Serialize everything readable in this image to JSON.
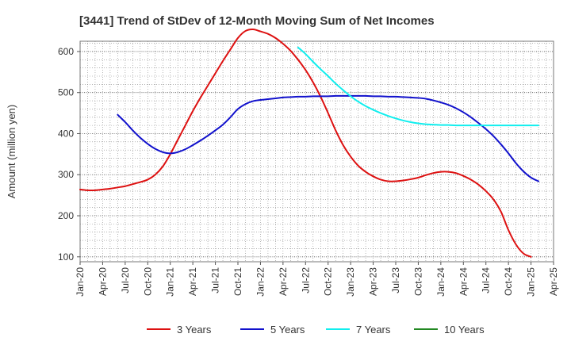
{
  "chart_data": {
    "type": "line",
    "title": "[3441]  Trend of StDev of 12-Month Moving Sum of Net Incomes",
    "ylabel": "Amount (million yen)",
    "xlabel": "",
    "ylim": [
      88,
      625
    ],
    "yticks": [
      100,
      200,
      300,
      400,
      500,
      600
    ],
    "xticks": [
      "Jan-20",
      "Apr-20",
      "Jul-20",
      "Oct-20",
      "Jan-21",
      "Apr-21",
      "Jul-21",
      "Oct-21",
      "Jan-22",
      "Apr-22",
      "Jul-22",
      "Oct-22",
      "Jan-23",
      "Apr-23",
      "Jul-23",
      "Oct-23",
      "Jan-24",
      "Apr-24",
      "Jul-24",
      "Oct-24",
      "Jan-25",
      "Apr-25"
    ],
    "grid": true,
    "legend_position": "bottom",
    "series": [
      {
        "name": "3 Years",
        "color": "#dd1111",
        "points": [
          [
            "Jan-20",
            264
          ],
          [
            "Feb-20",
            262
          ],
          [
            "Mar-20",
            262
          ],
          [
            "Apr-20",
            264
          ],
          [
            "May-20",
            266
          ],
          [
            "Jun-20",
            269
          ],
          [
            "Jul-20",
            272
          ],
          [
            "Aug-20",
            277
          ],
          [
            "Sep-20",
            282
          ],
          [
            "Oct-20",
            288
          ],
          [
            "Nov-20",
            300
          ],
          [
            "Dec-20",
            320
          ],
          [
            "Jan-21",
            350
          ],
          [
            "Feb-21",
            385
          ],
          [
            "Mar-21",
            420
          ],
          [
            "Apr-21",
            455
          ],
          [
            "May-21",
            487
          ],
          [
            "Jun-21",
            517
          ],
          [
            "Jul-21",
            547
          ],
          [
            "Aug-21",
            577
          ],
          [
            "Sep-21",
            605
          ],
          [
            "Oct-21",
            633
          ],
          [
            "Nov-21",
            650
          ],
          [
            "Dec-21",
            654
          ],
          [
            "Jan-22",
            649
          ],
          [
            "Feb-22",
            643
          ],
          [
            "Mar-22",
            633
          ],
          [
            "Apr-22",
            619
          ],
          [
            "May-22",
            602
          ],
          [
            "Jun-22",
            580
          ],
          [
            "Jul-22",
            555
          ],
          [
            "Aug-22",
            525
          ],
          [
            "Sep-22",
            490
          ],
          [
            "Oct-22",
            450
          ],
          [
            "Nov-22",
            408
          ],
          [
            "Dec-22",
            372
          ],
          [
            "Jan-23",
            344
          ],
          [
            "Feb-23",
            322
          ],
          [
            "Mar-23",
            307
          ],
          [
            "Apr-23",
            296
          ],
          [
            "May-23",
            288
          ],
          [
            "Jun-23",
            284
          ],
          [
            "Jul-23",
            284
          ],
          [
            "Aug-23",
            286
          ],
          [
            "Sep-23",
            289
          ],
          [
            "Oct-23",
            293
          ],
          [
            "Nov-23",
            299
          ],
          [
            "Dec-23",
            304
          ],
          [
            "Jan-24",
            307
          ],
          [
            "Feb-24",
            307
          ],
          [
            "Mar-24",
            304
          ],
          [
            "Apr-24",
            297
          ],
          [
            "May-24",
            288
          ],
          [
            "Jun-24",
            276
          ],
          [
            "Jul-24",
            260
          ],
          [
            "Aug-24",
            240
          ],
          [
            "Sep-24",
            210
          ],
          [
            "Oct-24",
            165
          ],
          [
            "Nov-24",
            130
          ],
          [
            "Dec-24",
            108
          ],
          [
            "Jan-25",
            100
          ]
        ]
      },
      {
        "name": "5 Years",
        "color": "#1111cc",
        "points": [
          [
            "Jun-20",
            446
          ],
          [
            "Jul-20",
            428
          ],
          [
            "Aug-20",
            408
          ],
          [
            "Sep-20",
            390
          ],
          [
            "Oct-20",
            375
          ],
          [
            "Nov-20",
            363
          ],
          [
            "Dec-20",
            355
          ],
          [
            "Jan-21",
            352
          ],
          [
            "Feb-21",
            355
          ],
          [
            "Mar-21",
            362
          ],
          [
            "Apr-21",
            372
          ],
          [
            "May-21",
            383
          ],
          [
            "Jun-21",
            395
          ],
          [
            "Jul-21",
            408
          ],
          [
            "Aug-21",
            422
          ],
          [
            "Sep-21",
            440
          ],
          [
            "Oct-21",
            460
          ],
          [
            "Nov-21",
            472
          ],
          [
            "Dec-21",
            479
          ],
          [
            "Jan-22",
            482
          ],
          [
            "Feb-22",
            484
          ],
          [
            "Mar-22",
            486
          ],
          [
            "Apr-22",
            488
          ],
          [
            "May-22",
            489
          ],
          [
            "Jun-22",
            490
          ],
          [
            "Jul-22",
            490
          ],
          [
            "Aug-22",
            491
          ],
          [
            "Sep-22",
            491
          ],
          [
            "Oct-22",
            491
          ],
          [
            "Nov-22",
            492
          ],
          [
            "Dec-22",
            492
          ],
          [
            "Jan-23",
            492
          ],
          [
            "Feb-23",
            492
          ],
          [
            "Mar-23",
            492
          ],
          [
            "Apr-23",
            491
          ],
          [
            "May-23",
            491
          ],
          [
            "Jun-23",
            490
          ],
          [
            "Jul-23",
            490
          ],
          [
            "Aug-23",
            489
          ],
          [
            "Sep-23",
            488
          ],
          [
            "Oct-23",
            487
          ],
          [
            "Nov-23",
            485
          ],
          [
            "Dec-23",
            481
          ],
          [
            "Jan-24",
            476
          ],
          [
            "Feb-24",
            470
          ],
          [
            "Mar-24",
            462
          ],
          [
            "Apr-24",
            452
          ],
          [
            "May-24",
            440
          ],
          [
            "Jun-24",
            426
          ],
          [
            "Jul-24",
            411
          ],
          [
            "Aug-24",
            394
          ],
          [
            "Sep-24",
            374
          ],
          [
            "Oct-24",
            352
          ],
          [
            "Nov-24",
            328
          ],
          [
            "Dec-24",
            308
          ],
          [
            "Jan-25",
            293
          ],
          [
            "Feb-25",
            284
          ]
        ]
      },
      {
        "name": "7 Years",
        "color": "#11eeee",
        "points": [
          [
            "Jun-22",
            610
          ],
          [
            "Jul-22",
            594
          ],
          [
            "Aug-22",
            575
          ],
          [
            "Sep-22",
            557
          ],
          [
            "Oct-22",
            540
          ],
          [
            "Nov-22",
            522
          ],
          [
            "Dec-22",
            506
          ],
          [
            "Jan-23",
            491
          ],
          [
            "Feb-23",
            478
          ],
          [
            "Mar-23",
            467
          ],
          [
            "Apr-23",
            458
          ],
          [
            "May-23",
            450
          ],
          [
            "Jun-23",
            443
          ],
          [
            "Jul-23",
            437
          ],
          [
            "Aug-23",
            432
          ],
          [
            "Sep-23",
            428
          ],
          [
            "Oct-23",
            425
          ],
          [
            "Nov-23",
            423
          ],
          [
            "Dec-23",
            422
          ],
          [
            "Jan-24",
            421
          ],
          [
            "Feb-24",
            421
          ],
          [
            "Mar-24",
            420
          ],
          [
            "Apr-24",
            420
          ],
          [
            "May-24",
            420
          ],
          [
            "Jun-24",
            420
          ],
          [
            "Jul-24",
            420
          ],
          [
            "Aug-24",
            420
          ],
          [
            "Sep-24",
            420
          ],
          [
            "Oct-24",
            420
          ],
          [
            "Nov-24",
            420
          ],
          [
            "Dec-24",
            420
          ],
          [
            "Jan-25",
            420
          ],
          [
            "Feb-25",
            420
          ]
        ]
      },
      {
        "name": "10 Years",
        "color": "#228822",
        "points": []
      }
    ]
  }
}
